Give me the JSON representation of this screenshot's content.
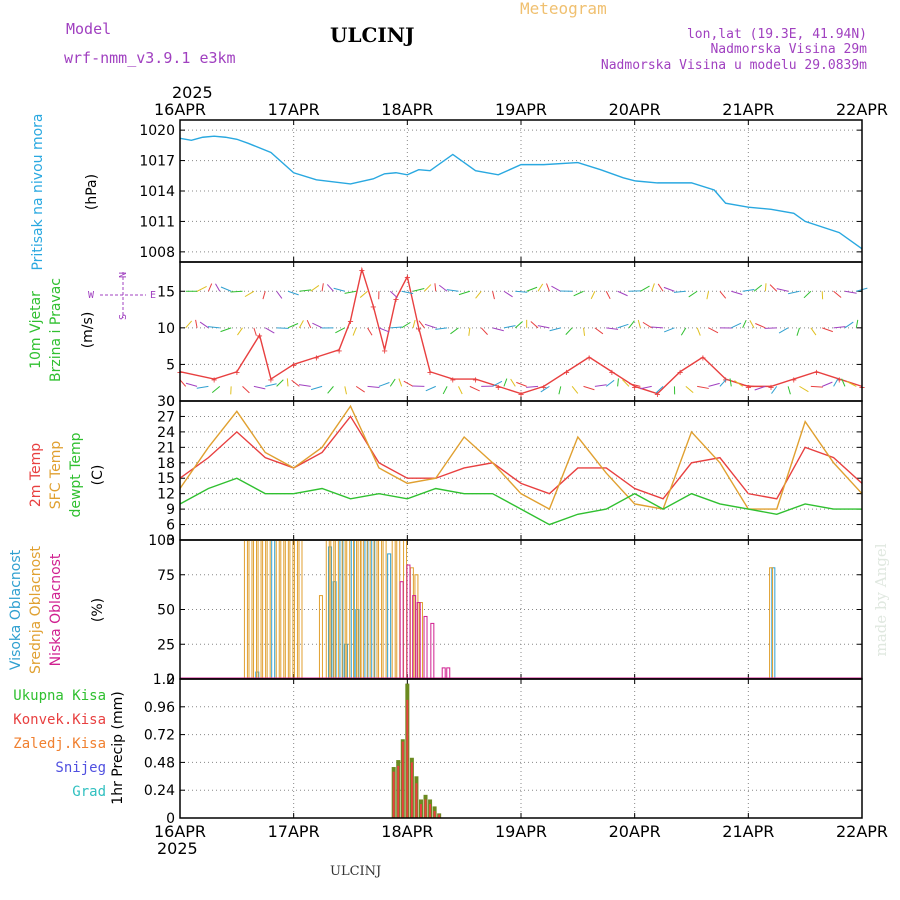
{
  "header": {
    "model_label": "Model",
    "model_name": "wrf-nmm_v3.9.1 e3km",
    "station": "ULCINJ",
    "product": "Meteogram",
    "lonlat": "lon,lat (19.3E, 41.94N)",
    "elevation": "Nadmorska Visina 29m",
    "model_elevation": "Nadmorska Visina u modelu 29.0839m",
    "year": "2025",
    "footer_station": "ULCINJ",
    "credit": "made by Angel"
  },
  "time_axis": {
    "labels": [
      "16APR",
      "17APR",
      "18APR",
      "19APR",
      "20APR",
      "21APR",
      "22APR"
    ],
    "year": "2025"
  },
  "colors": {
    "pressure": "#29a8e0",
    "temp2m": "#e84040",
    "sfc": "#e0a030",
    "dewpt": "#30c030",
    "high_cloud": "#30a0d0",
    "mid_cloud": "#e0a030",
    "low_cloud": "#d02090",
    "total_precip": "#30c030",
    "conv_precip": "#e84040",
    "frz_precip": "#f08030",
    "snow": "#5050e0",
    "hail": "#30c0c0",
    "label_purple": "#a040c0"
  },
  "chart_data": [
    {
      "type": "line",
      "title": "Pritisak na nivou mora",
      "ylabel": "(hPa)",
      "ylim": [
        1007,
        1021
      ],
      "yticks": [
        1008,
        1011,
        1014,
        1017,
        1020
      ],
      "series": [
        {
          "name": "Pritisak na nivou mora",
          "x": [
            0,
            0.1,
            0.2,
            0.3,
            0.4,
            0.5,
            0.6,
            0.8,
            1.0,
            1.2,
            1.5,
            1.7,
            1.8,
            1.9,
            2.0,
            2.1,
            2.2,
            2.4,
            2.6,
            2.8,
            3.0,
            3.2,
            3.5,
            3.7,
            3.9,
            4.0,
            4.2,
            4.5,
            4.7,
            4.8,
            5.0,
            5.2,
            5.4,
            5.5,
            5.8,
            6.0
          ],
          "values": [
            1019.2,
            1019.0,
            1019.3,
            1019.4,
            1019.3,
            1019.1,
            1018.7,
            1017.8,
            1015.8,
            1015.1,
            1014.7,
            1015.2,
            1015.7,
            1015.8,
            1015.6,
            1016.1,
            1016.0,
            1017.6,
            1016.0,
            1015.6,
            1016.6,
            1016.6,
            1016.8,
            1016.1,
            1015.3,
            1015.0,
            1014.8,
            1014.8,
            1014.1,
            1012.8,
            1012.4,
            1012.2,
            1011.8,
            1011.0,
            1009.9,
            1008.3
          ]
        }
      ]
    },
    {
      "type": "line",
      "title": "10m Vjetar Brzina i Pravac",
      "ylabel": "(m/s)",
      "ylim": [
        0,
        19
      ],
      "yticks": [
        0,
        5,
        10,
        15
      ],
      "compass": [
        "W",
        "E",
        "N",
        "S"
      ],
      "series": [
        {
          "name": "Brzina",
          "x": [
            0,
            0.3,
            0.5,
            0.7,
            0.8,
            1.0,
            1.2,
            1.4,
            1.5,
            1.6,
            1.7,
            1.8,
            1.9,
            2.0,
            2.1,
            2.2,
            2.4,
            2.6,
            2.8,
            3.0,
            3.2,
            3.4,
            3.6,
            3.8,
            4.0,
            4.2,
            4.4,
            4.6,
            4.8,
            5.0,
            5.2,
            5.4,
            5.6,
            5.8,
            6.0
          ],
          "values": [
            4,
            3,
            4,
            9,
            3,
            5,
            6,
            7,
            11,
            18,
            13,
            7,
            14,
            17,
            10,
            4,
            3,
            3,
            2,
            1,
            2,
            4,
            6,
            4,
            2,
            1,
            4,
            6,
            3,
            2,
            2,
            3,
            4,
            3,
            2
          ]
        }
      ]
    },
    {
      "type": "line",
      "title": "2m Temp / SFC Temp / dewpt Temp",
      "ylabel": "(C)",
      "ylim": [
        3,
        30
      ],
      "yticks": [
        3,
        6,
        9,
        12,
        15,
        18,
        21,
        24,
        27,
        30
      ],
      "series": [
        {
          "name": "2m Temp",
          "x": [
            0,
            0.25,
            0.5,
            0.75,
            1.0,
            1.25,
            1.5,
            1.75,
            2.0,
            2.25,
            2.5,
            2.75,
            3.0,
            3.25,
            3.5,
            3.75,
            4.0,
            4.25,
            4.5,
            4.75,
            5.0,
            5.25,
            5.5,
            5.75,
            6.0
          ],
          "values": [
            15,
            19,
            24,
            19,
            17,
            20,
            27,
            18,
            15,
            15,
            17,
            18,
            14,
            12,
            17,
            17,
            13,
            11,
            18,
            19,
            12,
            11,
            21,
            19,
            14
          ]
        },
        {
          "name": "SFC Temp",
          "x": [
            0,
            0.25,
            0.5,
            0.75,
            1.0,
            1.25,
            1.5,
            1.75,
            2.0,
            2.25,
            2.5,
            2.75,
            3.0,
            3.25,
            3.5,
            3.75,
            4.0,
            4.25,
            4.5,
            4.75,
            5.0,
            5.25,
            5.5,
            5.75,
            6.0
          ],
          "values": [
            13,
            21,
            28,
            20,
            17,
            21,
            29,
            17,
            14,
            15,
            23,
            18,
            12,
            9,
            23,
            16,
            10,
            9,
            24,
            18,
            9,
            9,
            26,
            18,
            12
          ]
        },
        {
          "name": "dewpt Temp",
          "x": [
            0,
            0.25,
            0.5,
            0.75,
            1.0,
            1.25,
            1.5,
            1.75,
            2.0,
            2.25,
            2.5,
            2.75,
            3.0,
            3.25,
            3.5,
            3.75,
            4.0,
            4.25,
            4.5,
            4.75,
            5.0,
            5.25,
            5.5,
            5.75,
            6.0
          ],
          "values": [
            10,
            13,
            15,
            12,
            12,
            13,
            11,
            12,
            11,
            13,
            12,
            12,
            9,
            6,
            8,
            9,
            12,
            9,
            12,
            10,
            9,
            8,
            10,
            9,
            9
          ]
        }
      ]
    },
    {
      "type": "bar",
      "title": "Visoka / Srednja / Niska Oblacnost",
      "ylabel": "(%)",
      "ylim": [
        0,
        100
      ],
      "yticks": [
        0,
        25,
        50,
        75,
        100
      ],
      "series": [
        {
          "name": "Visoka Oblacnost",
          "x": [
            0.68,
            0.82,
            1.32,
            1.36,
            1.42,
            1.46,
            1.52,
            1.56,
            1.64,
            1.7,
            1.84,
            5.22
          ],
          "values": [
            5,
            100,
            95,
            70,
            100,
            25,
            100,
            50,
            100,
            100,
            90,
            80
          ]
        },
        {
          "name": "Srednja Oblacnost",
          "x": [
            0.58,
            0.62,
            0.66,
            0.7,
            0.74,
            0.78,
            0.86,
            0.9,
            0.94,
            0.98,
            1.02,
            1.06,
            1.24,
            1.3,
            1.34,
            1.38,
            1.44,
            1.48,
            1.54,
            1.58,
            1.6,
            1.66,
            1.72,
            1.76,
            1.8,
            1.88,
            1.92,
            1.98,
            2.04,
            2.08,
            2.12,
            5.2
          ],
          "values": [
            100,
            100,
            100,
            100,
            100,
            100,
            100,
            100,
            100,
            100,
            100,
            100,
            60,
            100,
            100,
            100,
            100,
            100,
            100,
            100,
            100,
            100,
            100,
            100,
            100,
            100,
            100,
            100,
            80,
            75,
            55,
            80
          ]
        },
        {
          "name": "Niska Oblacnost",
          "x": [
            1.95,
            2.01,
            2.06,
            2.1,
            2.16,
            2.22,
            2.32,
            2.36
          ],
          "values": [
            70,
            82,
            60,
            55,
            45,
            40,
            8,
            8
          ]
        }
      ]
    },
    {
      "type": "bar",
      "title": "1hr Precip",
      "ylabel": "1hr Precip (mm)",
      "ylim": [
        0,
        1.2
      ],
      "yticks": [
        0,
        0.24,
        0.48,
        0.72,
        0.96,
        1.2
      ],
      "legend": [
        "Ukupna Kisa",
        "Konvek.Kisa",
        "Zaledj.Kisa",
        "Snijeg",
        "Grad"
      ],
      "series": [
        {
          "name": "Ukupna Kisa",
          "x": [
            1.88,
            1.92,
            1.96,
            2.0,
            2.04,
            2.08,
            2.12,
            2.16,
            2.2,
            2.24,
            2.28
          ],
          "values": [
            0.44,
            0.5,
            0.68,
            1.16,
            0.52,
            0.36,
            0.16,
            0.2,
            0.16,
            0.1,
            0.04
          ]
        },
        {
          "name": "Konvek.Kisa",
          "x": [
            1.88,
            1.92,
            1.96,
            2.0,
            2.04,
            2.08,
            2.12,
            2.16,
            2.2,
            2.24,
            2.28
          ],
          "values": [
            0.4,
            0.45,
            0.66,
            1.02,
            0.48,
            0.3,
            0.12,
            0.16,
            0.12,
            0.06,
            0.03
          ]
        }
      ]
    }
  ]
}
